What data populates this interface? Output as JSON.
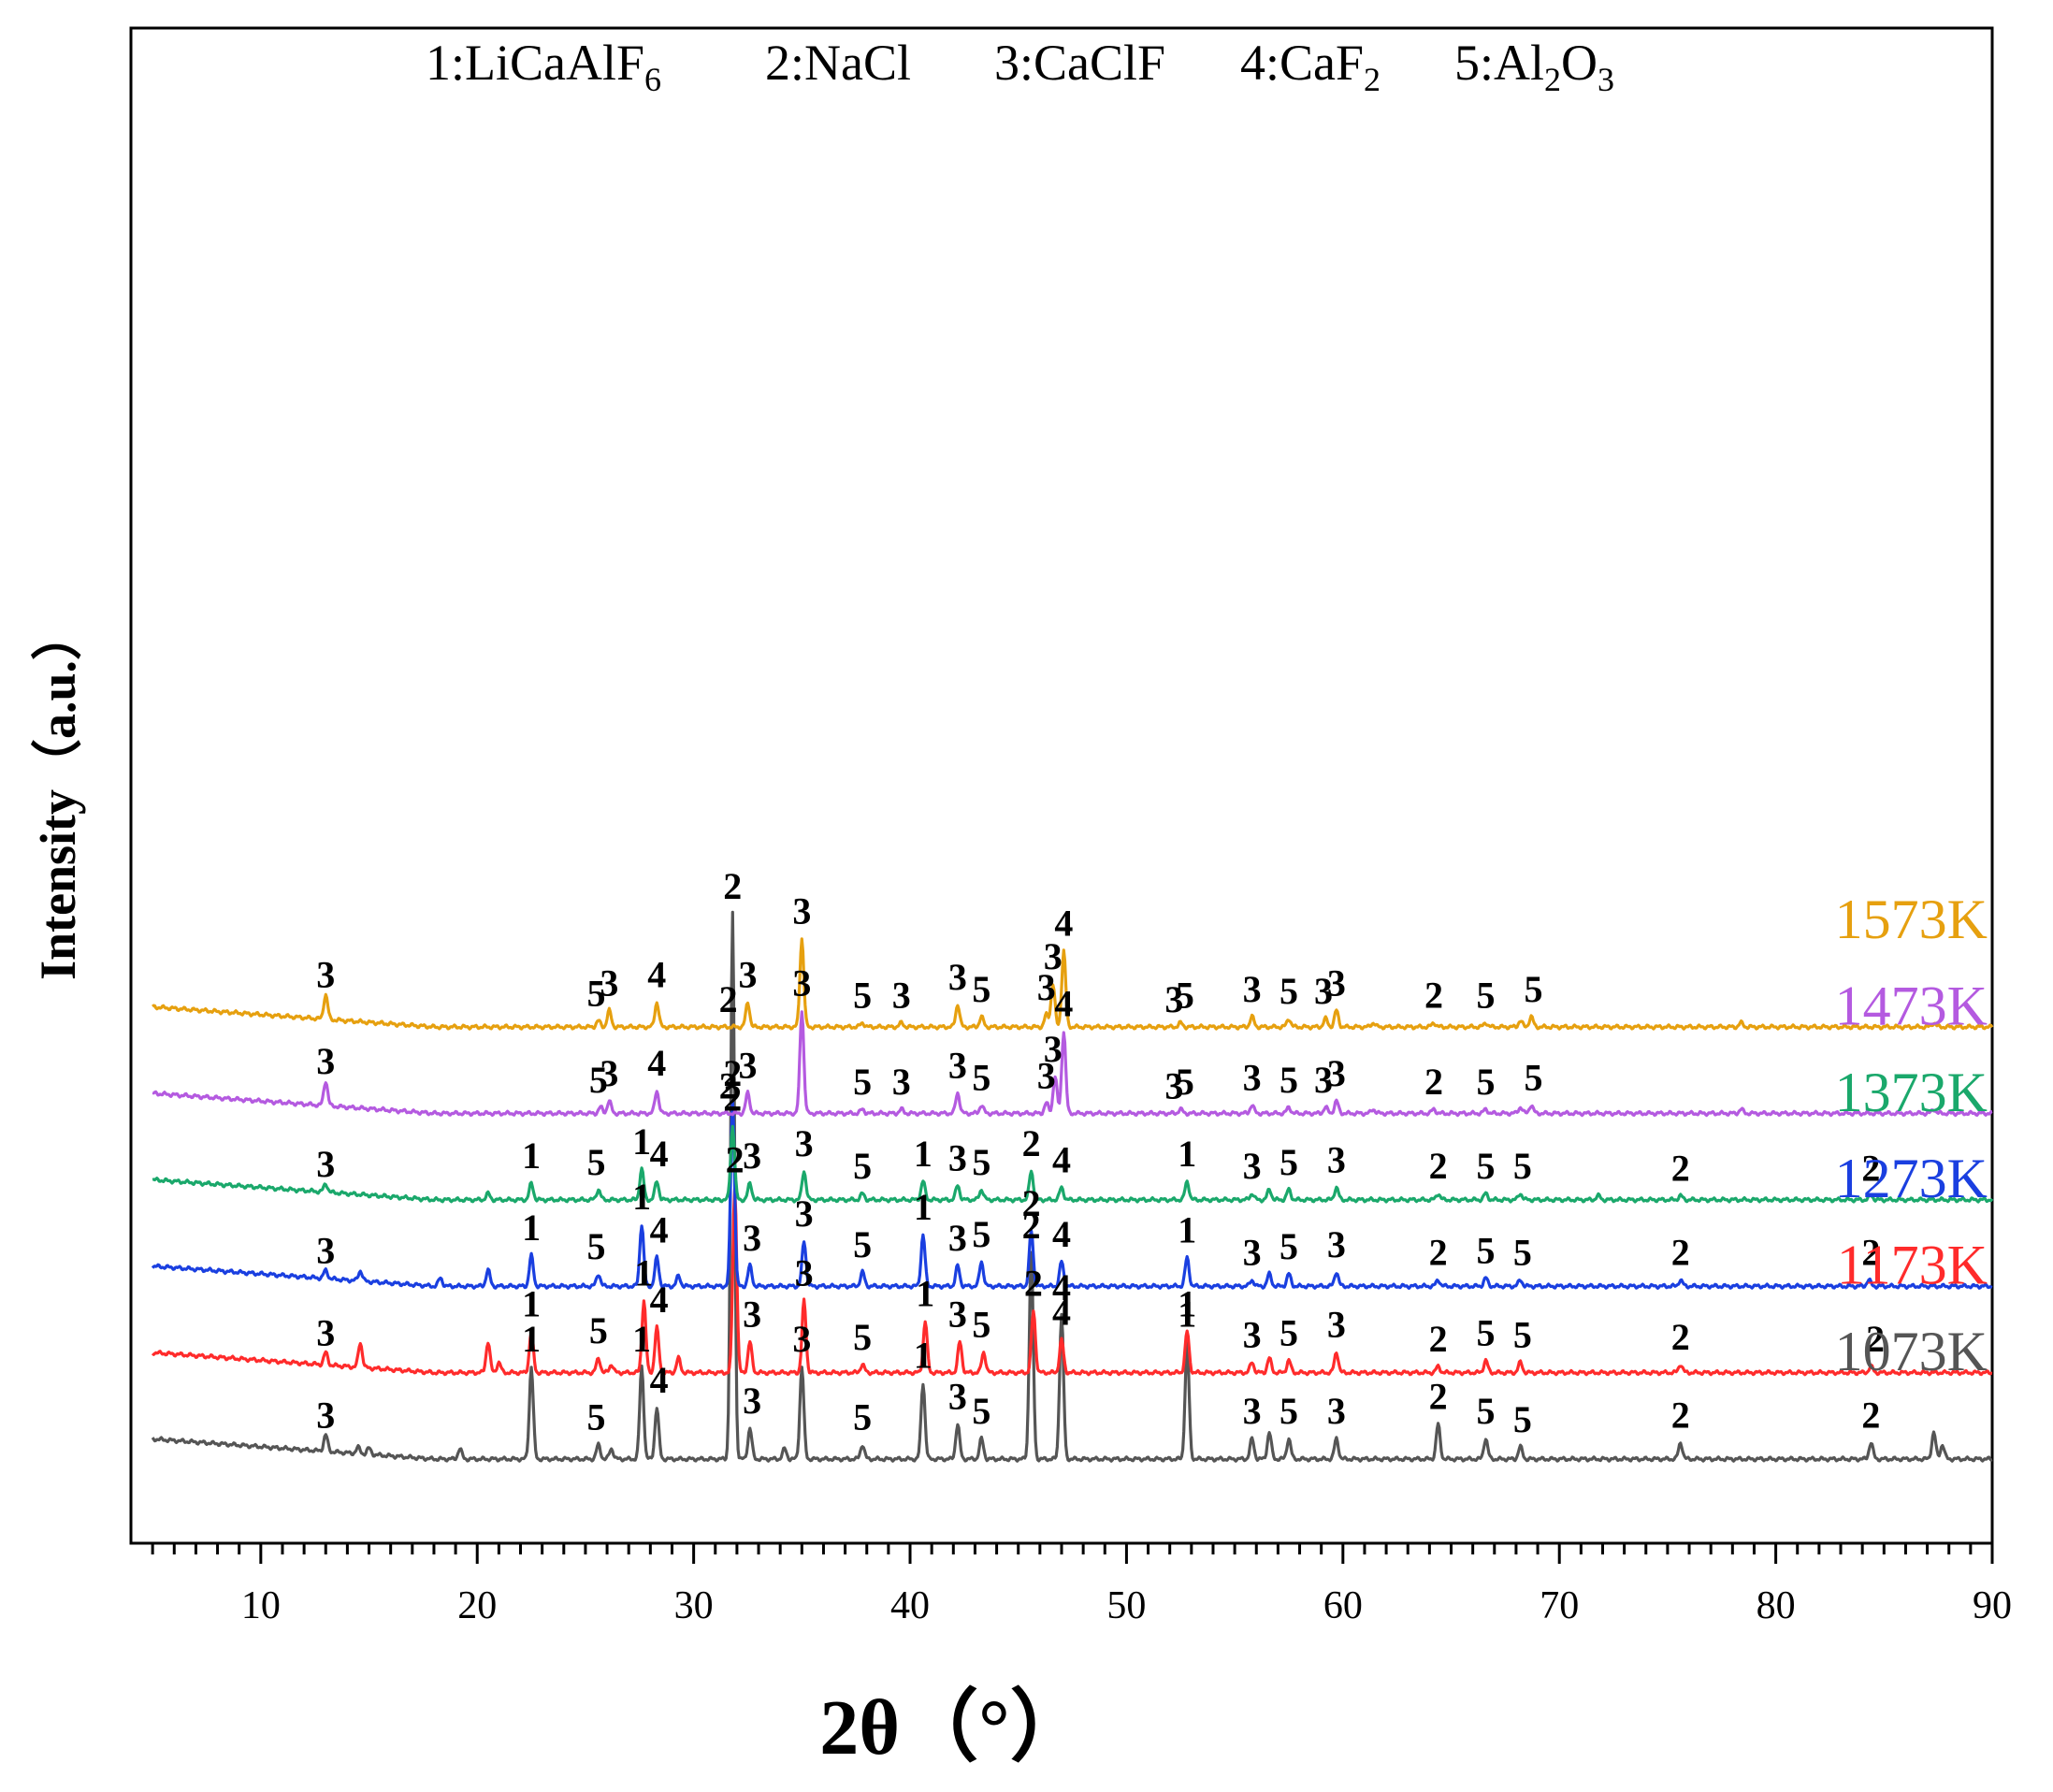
{
  "chart_data": {
    "type": "line",
    "title": "",
    "legend_phases": [
      {
        "id": "1",
        "text": "1:LiCaAlF",
        "sub": "6"
      },
      {
        "id": "2",
        "text": "2:NaCl",
        "sub": ""
      },
      {
        "id": "3",
        "text": "3:CaClF",
        "sub": ""
      },
      {
        "id": "4",
        "text": "4:CaF",
        "sub": "2"
      },
      {
        "id": "5",
        "text": "5:Al",
        "sub": "2",
        "text2": "O",
        "sub2": "3"
      }
    ],
    "xlabel": "2θ（°）",
    "ylabel": "Intensity（a.u.）",
    "xlim": [
      4,
      90
    ],
    "xticks": [
      "10",
      "20",
      "30",
      "40",
      "50",
      "60",
      "70",
      "80",
      "90"
    ],
    "yticks": [],
    "series": [
      {
        "name": "1073K",
        "color": "#555555",
        "baseline": 0.0,
        "peaks": [
          [
            13.0,
            0.08
          ],
          [
            14.5,
            0.03
          ],
          [
            15.0,
            0.03
          ],
          [
            19.2,
            0.05
          ],
          [
            22.5,
            0.45
          ],
          [
            25.6,
            0.07
          ],
          [
            26.2,
            0.05
          ],
          [
            27.6,
            0.45
          ],
          [
            28.3,
            0.25
          ],
          [
            31.8,
            2.65
          ],
          [
            32.6,
            0.15
          ],
          [
            34.2,
            0.05
          ],
          [
            35.0,
            0.45
          ],
          [
            37.8,
            0.07
          ],
          [
            40.6,
            0.37
          ],
          [
            42.2,
            0.17
          ],
          [
            43.3,
            0.1
          ],
          [
            45.6,
            1.0
          ],
          [
            47.0,
            0.7
          ],
          [
            52.8,
            0.57
          ],
          [
            55.8,
            0.1
          ],
          [
            56.6,
            0.13
          ],
          [
            57.5,
            0.1
          ],
          [
            59.7,
            0.1
          ],
          [
            64.4,
            0.17
          ],
          [
            66.6,
            0.1
          ],
          [
            68.2,
            0.06
          ],
          [
            75.6,
            0.08
          ],
          [
            84.4,
            0.08
          ],
          [
            87.3,
            0.13
          ],
          [
            87.7,
            0.07
          ]
        ],
        "labels": [
          [
            13.0,
            "3"
          ],
          [
            22.5,
            "1"
          ],
          [
            25.5,
            "5"
          ],
          [
            27.6,
            "1"
          ],
          [
            28.4,
            "4"
          ],
          [
            31.8,
            "2"
          ],
          [
            32.7,
            "3"
          ],
          [
            35.0,
            "3"
          ],
          [
            37.8,
            "5"
          ],
          [
            40.6,
            "1"
          ],
          [
            42.2,
            "3"
          ],
          [
            43.3,
            "5"
          ],
          [
            45.6,
            "2"
          ],
          [
            47.0,
            "4"
          ],
          [
            52.8,
            "1"
          ],
          [
            55.8,
            "3"
          ],
          [
            57.5,
            "5"
          ],
          [
            59.7,
            "3"
          ],
          [
            64.4,
            "2"
          ],
          [
            66.6,
            "5"
          ],
          [
            68.3,
            "5"
          ],
          [
            75.6,
            "2"
          ],
          [
            84.4,
            "2"
          ]
        ]
      },
      {
        "name": "1173K",
        "color": "#ff2b2b",
        "baseline": 0.42,
        "peaks": [
          [
            13.0,
            0.06
          ],
          [
            14.6,
            0.12
          ],
          [
            20.5,
            0.15
          ],
          [
            21.0,
            0.05
          ],
          [
            22.5,
            0.2
          ],
          [
            25.6,
            0.07
          ],
          [
            26.2,
            0.04
          ],
          [
            27.7,
            0.35
          ],
          [
            28.3,
            0.22
          ],
          [
            29.3,
            0.07
          ],
          [
            31.9,
            0.9
          ],
          [
            32.6,
            0.15
          ],
          [
            35.1,
            0.35
          ],
          [
            37.8,
            0.04
          ],
          [
            40.7,
            0.25
          ],
          [
            42.3,
            0.15
          ],
          [
            43.4,
            0.1
          ],
          [
            45.7,
            0.3
          ],
          [
            47.0,
            0.16
          ],
          [
            52.8,
            0.2
          ],
          [
            55.8,
            0.05
          ],
          [
            56.6,
            0.07
          ],
          [
            57.5,
            0.06
          ],
          [
            59.7,
            0.1
          ],
          [
            64.4,
            0.03
          ],
          [
            66.6,
            0.06
          ],
          [
            68.2,
            0.05
          ],
          [
            75.6,
            0.04
          ],
          [
            84.4,
            0.03
          ]
        ],
        "labels": [
          [
            13.0,
            "3"
          ],
          [
            22.5,
            "1"
          ],
          [
            25.6,
            "5"
          ],
          [
            27.7,
            "1"
          ],
          [
            28.4,
            "4"
          ],
          [
            31.9,
            "2"
          ],
          [
            32.7,
            "3"
          ],
          [
            35.1,
            "3"
          ],
          [
            37.8,
            "5"
          ],
          [
            40.7,
            "1"
          ],
          [
            42.2,
            "3"
          ],
          [
            43.3,
            "5"
          ],
          [
            45.7,
            "2"
          ],
          [
            47.0,
            "4"
          ],
          [
            52.8,
            "1"
          ],
          [
            55.8,
            "3"
          ],
          [
            57.5,
            "5"
          ],
          [
            59.7,
            "3"
          ],
          [
            64.4,
            "2"
          ],
          [
            66.6,
            "5"
          ],
          [
            68.3,
            "5"
          ],
          [
            75.6,
            "2"
          ],
          [
            84.6,
            "2"
          ]
        ]
      },
      {
        "name": "1273K",
        "color": "#1a3fe0",
        "baseline": 0.84,
        "peaks": [
          [
            13.0,
            0.04
          ],
          [
            14.6,
            0.05
          ],
          [
            18.3,
            0.04
          ],
          [
            20.5,
            0.08
          ],
          [
            22.5,
            0.15
          ],
          [
            25.6,
            0.06
          ],
          [
            27.6,
            0.3
          ],
          [
            28.3,
            0.14
          ],
          [
            29.3,
            0.05
          ],
          [
            31.8,
            0.9
          ],
          [
            32.6,
            0.1
          ],
          [
            35.1,
            0.22
          ],
          [
            37.8,
            0.07
          ],
          [
            40.6,
            0.25
          ],
          [
            42.2,
            0.1
          ],
          [
            43.3,
            0.12
          ],
          [
            45.6,
            0.27
          ],
          [
            47.0,
            0.12
          ],
          [
            52.8,
            0.14
          ],
          [
            55.8,
            0.03
          ],
          [
            56.6,
            0.06
          ],
          [
            57.5,
            0.06
          ],
          [
            59.7,
            0.07
          ],
          [
            64.4,
            0.03
          ],
          [
            66.6,
            0.04
          ],
          [
            68.2,
            0.03
          ],
          [
            75.6,
            0.03
          ],
          [
            84.3,
            0.03
          ]
        ],
        "labels": [
          [
            13.0,
            "3"
          ],
          [
            22.5,
            "1"
          ],
          [
            25.5,
            "5"
          ],
          [
            27.6,
            "1"
          ],
          [
            28.4,
            "4"
          ],
          [
            31.8,
            "2"
          ],
          [
            32.7,
            "3"
          ],
          [
            35.1,
            "3"
          ],
          [
            37.8,
            "5"
          ],
          [
            40.6,
            "1"
          ],
          [
            42.2,
            "3"
          ],
          [
            43.3,
            "5"
          ],
          [
            45.6,
            "2"
          ],
          [
            47.0,
            "4"
          ],
          [
            52.8,
            "1"
          ],
          [
            55.8,
            "3"
          ],
          [
            57.5,
            "5"
          ],
          [
            59.7,
            "3"
          ],
          [
            64.4,
            "2"
          ],
          [
            66.6,
            "5"
          ],
          [
            68.3,
            "5"
          ],
          [
            75.6,
            "2"
          ],
          [
            84.4,
            "2"
          ]
        ]
      },
      {
        "name": "1373K",
        "color": "#1aa86b",
        "baseline": 1.26,
        "peaks": [
          [
            13.0,
            0.04
          ],
          [
            20.5,
            0.03
          ],
          [
            22.5,
            0.08
          ],
          [
            25.6,
            0.05
          ],
          [
            27.6,
            0.15
          ],
          [
            28.3,
            0.09
          ],
          [
            31.8,
            0.36
          ],
          [
            32.6,
            0.08
          ],
          [
            35.1,
            0.14
          ],
          [
            37.8,
            0.03
          ],
          [
            40.6,
            0.09
          ],
          [
            42.2,
            0.07
          ],
          [
            43.3,
            0.05
          ],
          [
            45.6,
            0.14
          ],
          [
            47.0,
            0.06
          ],
          [
            52.8,
            0.09
          ],
          [
            55.8,
            0.03
          ],
          [
            56.6,
            0.05
          ],
          [
            57.5,
            0.05
          ],
          [
            59.7,
            0.06
          ],
          [
            64.4,
            0.03
          ],
          [
            66.6,
            0.03
          ],
          [
            68.2,
            0.03
          ],
          [
            71.8,
            0.02
          ],
          [
            75.6,
            0.02
          ],
          [
            84.4,
            0.02
          ]
        ],
        "labels": [
          [
            13.0,
            "3"
          ],
          [
            22.5,
            "1"
          ],
          [
            25.5,
            "5"
          ],
          [
            27.6,
            "1"
          ],
          [
            28.4,
            "4"
          ],
          [
            31.8,
            "2"
          ],
          [
            32.7,
            "3"
          ],
          [
            35.1,
            "3"
          ],
          [
            37.8,
            "5"
          ],
          [
            40.6,
            "1"
          ],
          [
            42.2,
            "3"
          ],
          [
            43.3,
            "5"
          ],
          [
            45.6,
            "2"
          ],
          [
            47.0,
            "4"
          ],
          [
            52.8,
            "1"
          ],
          [
            55.8,
            "3"
          ],
          [
            57.5,
            "5"
          ],
          [
            59.7,
            "3"
          ],
          [
            64.4,
            "2"
          ],
          [
            66.6,
            "5"
          ],
          [
            68.3,
            "5"
          ],
          [
            75.6,
            "2"
          ],
          [
            84.4,
            "2"
          ]
        ]
      },
      {
        "name": "1473K",
        "color": "#b45ae0",
        "baseline": 1.68,
        "peaks": [
          [
            13.0,
            0.12
          ],
          [
            25.7,
            0.03
          ],
          [
            26.1,
            0.06
          ],
          [
            28.3,
            0.11
          ],
          [
            32.5,
            0.1
          ],
          [
            35.0,
            0.5
          ],
          [
            37.8,
            0.02
          ],
          [
            39.6,
            0.02
          ],
          [
            42.2,
            0.1
          ],
          [
            43.3,
            0.04
          ],
          [
            46.3,
            0.05
          ],
          [
            46.7,
            0.18
          ],
          [
            47.1,
            0.4
          ],
          [
            52.5,
            0.02
          ],
          [
            55.8,
            0.04
          ],
          [
            57.5,
            0.03
          ],
          [
            59.2,
            0.03
          ],
          [
            59.7,
            0.06
          ],
          [
            61.4,
            0.02
          ],
          [
            64.2,
            0.02
          ],
          [
            66.6,
            0.02
          ],
          [
            68.2,
            0.03
          ],
          [
            68.7,
            0.04
          ],
          [
            78.4,
            0.02
          ],
          [
            87.3,
            0.02
          ]
        ],
        "labels": [
          [
            13.0,
            "3"
          ],
          [
            25.6,
            "5"
          ],
          [
            26.1,
            "3"
          ],
          [
            28.3,
            "4"
          ],
          [
            31.6,
            "2"
          ],
          [
            32.5,
            "3"
          ],
          [
            35.0,
            "3"
          ],
          [
            37.8,
            "5"
          ],
          [
            39.6,
            "3"
          ],
          [
            42.2,
            "3"
          ],
          [
            43.3,
            "5"
          ],
          [
            46.3,
            "3"
          ],
          [
            46.6,
            "3"
          ],
          [
            47.1,
            "4"
          ],
          [
            52.2,
            "3"
          ],
          [
            52.7,
            "5"
          ],
          [
            55.8,
            "3"
          ],
          [
            57.5,
            "5"
          ],
          [
            59.1,
            "3"
          ],
          [
            59.7,
            "3"
          ],
          [
            64.2,
            "2"
          ],
          [
            66.6,
            "5"
          ],
          [
            68.8,
            "5"
          ]
        ]
      },
      {
        "name": "1573K",
        "color": "#e6a00f",
        "baseline": 2.1,
        "peaks": [
          [
            13.0,
            0.12
          ],
          [
            25.6,
            0.03
          ],
          [
            26.1,
            0.08
          ],
          [
            28.3,
            0.12
          ],
          [
            32.5,
            0.12
          ],
          [
            35.0,
            0.43
          ],
          [
            37.8,
            0.02
          ],
          [
            39.6,
            0.02
          ],
          [
            42.2,
            0.11
          ],
          [
            43.3,
            0.05
          ],
          [
            46.3,
            0.06
          ],
          [
            46.6,
            0.21
          ],
          [
            47.1,
            0.37
          ],
          [
            52.5,
            0.02
          ],
          [
            55.8,
            0.05
          ],
          [
            57.5,
            0.04
          ],
          [
            59.2,
            0.04
          ],
          [
            59.7,
            0.08
          ],
          [
            61.4,
            0.02
          ],
          [
            64.2,
            0.02
          ],
          [
            66.6,
            0.02
          ],
          [
            68.2,
            0.03
          ],
          [
            68.7,
            0.05
          ],
          [
            78.4,
            0.02
          ],
          [
            87.3,
            0.02
          ]
        ],
        "labels": [
          [
            13.0,
            "3"
          ],
          [
            25.5,
            "5"
          ],
          [
            26.1,
            "3"
          ],
          [
            28.3,
            "4"
          ],
          [
            31.6,
            "2"
          ],
          [
            32.5,
            "3"
          ],
          [
            35.0,
            "3"
          ],
          [
            37.8,
            "5"
          ],
          [
            39.6,
            "3"
          ],
          [
            42.2,
            "3"
          ],
          [
            43.3,
            "5"
          ],
          [
            46.3,
            "3"
          ],
          [
            46.6,
            "3"
          ],
          [
            47.1,
            "4"
          ],
          [
            52.2,
            "3"
          ],
          [
            52.7,
            "5"
          ],
          [
            55.8,
            "3"
          ],
          [
            57.5,
            "5"
          ],
          [
            59.1,
            "3"
          ],
          [
            59.7,
            "3"
          ],
          [
            64.2,
            "2"
          ],
          [
            66.6,
            "5"
          ],
          [
            68.8,
            "5"
          ]
        ]
      }
    ]
  }
}
